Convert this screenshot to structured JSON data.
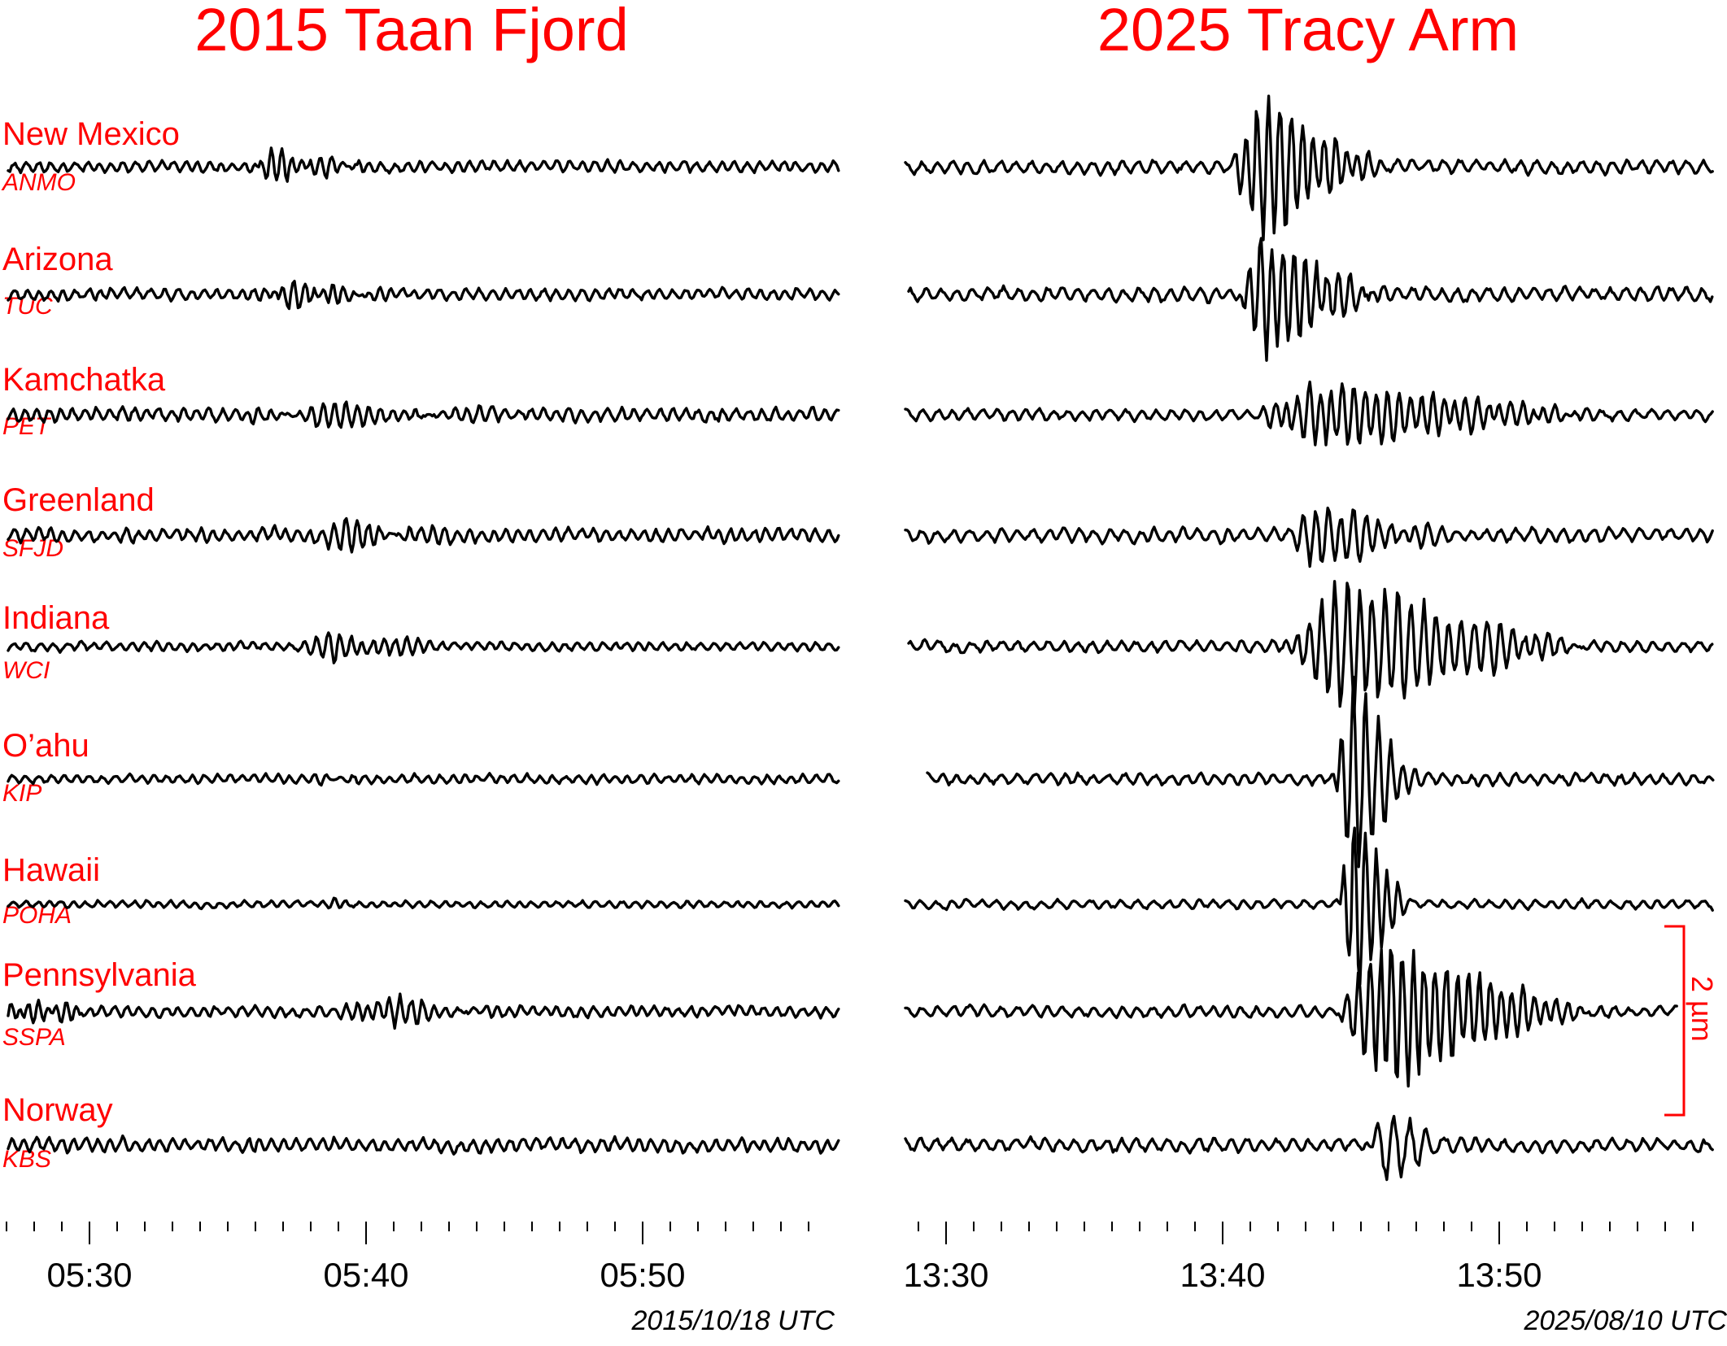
{
  "chart_data": [
    {
      "type": "line",
      "title": "2015 Taan Fjord",
      "date_label": "2015/10/18 UTC",
      "x_range": [
        "05:27",
        "05:57"
      ],
      "x_ticks": [
        {
          "label": "05:30",
          "minute": 3
        },
        {
          "label": "05:40",
          "minute": 13
        },
        {
          "label": "05:50",
          "minute": 23
        }
      ],
      "minor_tick_interval_minutes": 1,
      "series": [
        {
          "name": "New Mexico",
          "station": "ANMO",
          "arrival_minute": 8.5,
          "duration": 6,
          "amplitude": 0.2,
          "period": 0.35,
          "noise": 0.05,
          "spike": 0.2
        },
        {
          "name": "Arizona",
          "station": "TUC",
          "arrival_minute": 9,
          "duration": 6,
          "amplitude": 0.16,
          "period": 0.35,
          "noise": 0.05
        },
        {
          "name": "Kamchatka",
          "station": "PET",
          "arrival_minute": 8.5,
          "duration": 14,
          "amplitude": 0.1,
          "period": 0.4,
          "noise": 0.06
        },
        {
          "name": "Greenland",
          "station": "SFJD",
          "arrival_minute": 11,
          "duration": 7,
          "amplitude": 0.18,
          "period": 0.4,
          "noise": 0.06
        },
        {
          "name": "Indiana",
          "station": "WCI",
          "arrival_minute": 10.5,
          "duration": 7,
          "amplitude": 0.18,
          "period": 0.4,
          "noise": 0.04
        },
        {
          "name": "O’ahu",
          "station": "KIP",
          "arrival_minute": 11,
          "duration": 2,
          "amplitude": 0.05,
          "period": 0.35,
          "noise": 0.04
        },
        {
          "name": "Hawaii",
          "station": "POHA",
          "arrival_minute": 11.5,
          "duration": 1.5,
          "amplitude": 0.05,
          "period": 0.35,
          "noise": 0.03
        },
        {
          "name": "Pennsylvania",
          "station": "SSPA",
          "arrival_minute": 12,
          "duration": 6.5,
          "amplitude": 0.19,
          "period": 0.4,
          "noise": 0.05,
          "early_burst": 0.08
        },
        {
          "name": "Norway",
          "station": "KBS",
          "arrival_minute": 8,
          "duration": 2,
          "amplitude": 0.04,
          "period": 0.35,
          "noise": 0.06
        }
      ]
    },
    {
      "type": "line",
      "title": "2025 Tracy Arm",
      "date_label": "2025/08/10 UTC",
      "x_range": [
        "13:29",
        "13:58"
      ],
      "x_ticks": [
        {
          "label": "13:30",
          "minute": 1
        },
        {
          "label": "13:40",
          "minute": 11
        },
        {
          "label": "13:50",
          "minute": 21
        }
      ],
      "minor_tick_interval_minutes": 1,
      "scale_bar": {
        "label": "2 µm",
        "value_um": 2
      },
      "series": [
        {
          "name": "New Mexico",
          "station": "ANMO",
          "arrival_minute": 11.3,
          "duration": 6,
          "amplitude": 1.0,
          "period": 0.4,
          "noise": 0.06
        },
        {
          "name": "Arizona",
          "station": "TUC",
          "arrival_minute": 11.5,
          "duration": 6,
          "amplitude": 0.9,
          "period": 0.4,
          "noise": 0.06
        },
        {
          "name": "Kamchatka",
          "station": "PET",
          "arrival_minute": 12.2,
          "duration": 14,
          "amplitude": 0.45,
          "period": 0.4,
          "noise": 0.05
        },
        {
          "name": "Greenland",
          "station": "SFJD",
          "arrival_minute": 13.3,
          "duration": 7,
          "amplitude": 0.45,
          "period": 0.45,
          "noise": 0.06
        },
        {
          "name": "Indiana",
          "station": "WCI",
          "arrival_minute": 13.2,
          "duration": 12,
          "amplitude": 0.9,
          "period": 0.45,
          "noise": 0.05
        },
        {
          "name": "O’ahu",
          "station": "KIP",
          "arrival_minute": 15,
          "duration": 3.5,
          "amplitude": 1.3,
          "period": 0.45,
          "noise": 0.05
        },
        {
          "name": "Hawaii",
          "station": "POHA",
          "arrival_minute": 15.2,
          "duration": 2.8,
          "amplitude": 1.4,
          "period": 0.4,
          "noise": 0.04
        },
        {
          "name": "Pennsylvania",
          "station": "SSPA",
          "arrival_minute": 15.1,
          "duration": 10,
          "amplitude": 1.0,
          "period": 0.4,
          "noise": 0.05
        },
        {
          "name": "Norway",
          "station": "KBS",
          "arrival_minute": 16.2,
          "duration": 4,
          "amplitude": 0.6,
          "period": 0.6,
          "noise": 0.06
        }
      ]
    }
  ]
}
